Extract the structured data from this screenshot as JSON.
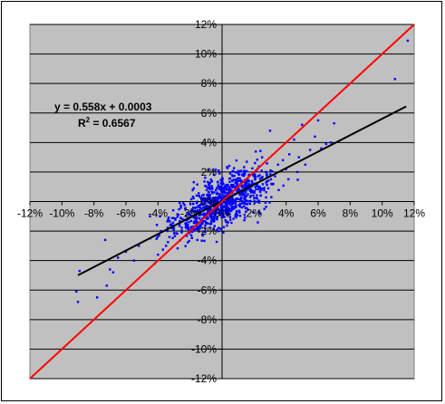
{
  "chart_data": {
    "type": "scatter",
    "title": "",
    "xlabel": "",
    "ylabel": "",
    "xlim": [
      -0.12,
      0.12
    ],
    "ylim": [
      -0.12,
      0.12
    ],
    "x_ticks": [
      "-12%",
      "-10%",
      "-8%",
      "-6%",
      "-4%",
      "-2%",
      "0%",
      "2%",
      "4%",
      "6%",
      "8%",
      "10%",
      "12%"
    ],
    "y_ticks": [
      "-12%",
      "-10%",
      "-8%",
      "-6%",
      "-4%",
      "-2%",
      "0%",
      "2%",
      "4%",
      "6%",
      "8%",
      "10%",
      "12%"
    ],
    "grid": "horizontal",
    "background_color": "#c0c0c0",
    "marker_color": "#0000ff",
    "regression_line": {
      "slope": 0.558,
      "intercept": 0.0003,
      "color": "#000000",
      "x_range": [
        -0.09,
        0.115
      ]
    },
    "identity_line": {
      "slope": 1,
      "intercept": 0,
      "color": "#ff0000"
    },
    "annotation": {
      "equation": "y = 0.558x + 0.0003",
      "r2_label": "R",
      "r2_sup": "2",
      "r2_value": " = 0.6567"
    },
    "outlier_points": [
      [
        0.116,
        0.109
      ],
      [
        0.108,
        0.083
      ],
      [
        0.07,
        0.053
      ],
      [
        0.068,
        0.04
      ],
      [
        0.065,
        0.039
      ],
      [
        0.062,
        0.036
      ],
      [
        0.06,
        0.055
      ],
      [
        0.058,
        0.044
      ],
      [
        0.055,
        0.035
      ],
      [
        0.05,
        0.052
      ],
      [
        0.045,
        0.042
      ],
      [
        0.048,
        0.03
      ],
      [
        0.047,
        0.02
      ],
      [
        0.052,
        0.025
      ],
      [
        0.042,
        0.032
      ],
      [
        0.04,
        0.022
      ],
      [
        0.038,
        0.028
      ],
      [
        0.035,
        0.025
      ],
      [
        0.03,
        0.048
      ],
      [
        0.025,
        0.03
      ],
      [
        0.028,
        0.018
      ],
      [
        0.032,
        0.012
      ],
      [
        -0.09,
        -0.068
      ],
      [
        -0.091,
        -0.061
      ],
      [
        -0.089,
        -0.047
      ],
      [
        -0.078,
        -0.065
      ],
      [
        -0.072,
        -0.057
      ],
      [
        -0.07,
        -0.046
      ],
      [
        -0.068,
        -0.048
      ],
      [
        -0.065,
        -0.038
      ],
      [
        -0.073,
        -0.026
      ],
      [
        -0.06,
        -0.034
      ],
      [
        -0.055,
        -0.04
      ],
      [
        -0.052,
        -0.03
      ],
      [
        -0.045,
        -0.025
      ],
      [
        -0.042,
        -0.042
      ],
      [
        -0.04,
        -0.036
      ],
      [
        -0.038,
        -0.02
      ],
      [
        -0.035,
        -0.03
      ],
      [
        -0.03,
        -0.018
      ],
      [
        -0.045,
        -0.01
      ]
    ],
    "cloud": {
      "count": 900,
      "x_sd": 0.015,
      "noise_sd": 0.0085,
      "slope": 0.558,
      "intercept": 0.0003
    }
  }
}
